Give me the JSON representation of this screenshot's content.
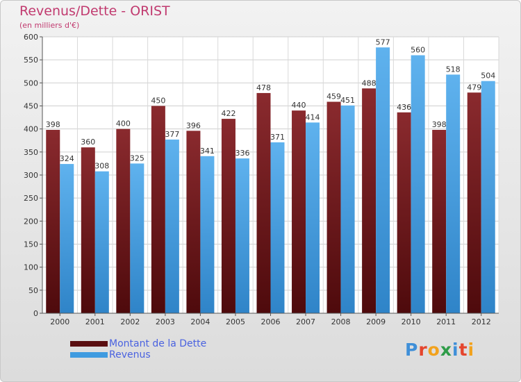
{
  "chart_data": {
    "type": "bar",
    "title": "Revenus/Dette - ORIST",
    "subtitle": "(en milliers d'€)",
    "categories": [
      "2000",
      "2001",
      "2002",
      "2003",
      "2004",
      "2005",
      "2006",
      "2007",
      "2008",
      "2009",
      "2010",
      "2011",
      "2012"
    ],
    "series": [
      {
        "name": "Montant de la Dette",
        "color": "#7a1e22",
        "values": [
          398,
          360,
          400,
          450,
          396,
          422,
          478,
          440,
          459,
          488,
          436,
          398,
          479
        ]
      },
      {
        "name": "Revenus",
        "color": "#3f9be0",
        "values": [
          324,
          308,
          325,
          377,
          341,
          336,
          371,
          414,
          451,
          577,
          560,
          518,
          504
        ]
      }
    ],
    "ylim": [
      0,
      600
    ],
    "yticks": [
      0,
      50,
      100,
      150,
      200,
      250,
      300,
      350,
      400,
      450,
      500,
      550,
      600
    ],
    "grid": true,
    "legend": "bottom-left"
  },
  "logo": {
    "text": "Proxiti",
    "letters": [
      {
        "ch": "P",
        "color": "#3f8fd8"
      },
      {
        "ch": "r",
        "color": "#e5452d"
      },
      {
        "ch": "o",
        "color": "#f2a21d"
      },
      {
        "ch": "x",
        "color": "#2e9c48"
      },
      {
        "ch": "i",
        "color": "#3f8fd8"
      },
      {
        "ch": "t",
        "color": "#e5452d"
      },
      {
        "ch": "i",
        "color": "#f2a21d"
      }
    ]
  }
}
